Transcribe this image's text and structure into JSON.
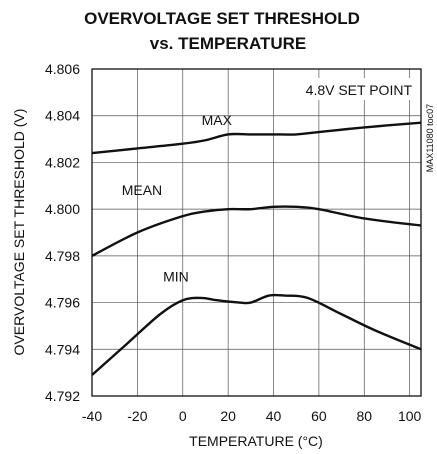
{
  "chart_data": {
    "type": "line",
    "title": "OVERVOLTAGE SET THRESHOLD",
    "subtitle": "vs. TEMPERATURE",
    "xlabel": "TEMPERATURE (°C)",
    "ylabel": "OVERVOLTAGE SET THRESHOLD (V)",
    "xlim": [
      -40,
      105
    ],
    "ylim": [
      4.792,
      4.806
    ],
    "x_ticks": [
      -40,
      -20,
      0,
      20,
      40,
      60,
      80,
      100
    ],
    "y_ticks": [
      "4.792",
      "4.794",
      "4.796",
      "4.798",
      "4.800",
      "4.802",
      "4.804",
      "4.806"
    ],
    "grid": true,
    "annotation": "4.8V SET POINT",
    "figure_code": "MAX11080 toc07",
    "series": [
      {
        "name": "MAX",
        "points": [
          [
            -40,
            4.8024
          ],
          [
            -20,
            4.8026
          ],
          [
            0,
            4.8028
          ],
          [
            10,
            4.80295
          ],
          [
            20,
            4.8032
          ],
          [
            30,
            4.8032
          ],
          [
            40,
            4.8032
          ],
          [
            50,
            4.8032
          ],
          [
            60,
            4.8033
          ],
          [
            80,
            4.8035
          ],
          [
            105,
            4.8037
          ]
        ]
      },
      {
        "name": "MEAN",
        "points": [
          [
            -40,
            4.798
          ],
          [
            -20,
            4.799
          ],
          [
            0,
            4.7997
          ],
          [
            10,
            4.7999
          ],
          [
            20,
            4.8
          ],
          [
            30,
            4.8
          ],
          [
            40,
            4.8001
          ],
          [
            50,
            4.8001
          ],
          [
            60,
            4.8
          ],
          [
            80,
            4.7996
          ],
          [
            105,
            4.7993
          ]
        ]
      },
      {
        "name": "MIN",
        "points": [
          [
            -40,
            4.7929
          ],
          [
            -25,
            4.7942
          ],
          [
            -10,
            4.7955
          ],
          [
            0,
            4.7961
          ],
          [
            8,
            4.7962
          ],
          [
            15,
            4.7961
          ],
          [
            25,
            4.796
          ],
          [
            30,
            4.796
          ],
          [
            38,
            4.7963
          ],
          [
            45,
            4.7963
          ],
          [
            55,
            4.7962
          ],
          [
            70,
            4.7955
          ],
          [
            85,
            4.7948
          ],
          [
            105,
            4.794
          ]
        ]
      }
    ]
  }
}
